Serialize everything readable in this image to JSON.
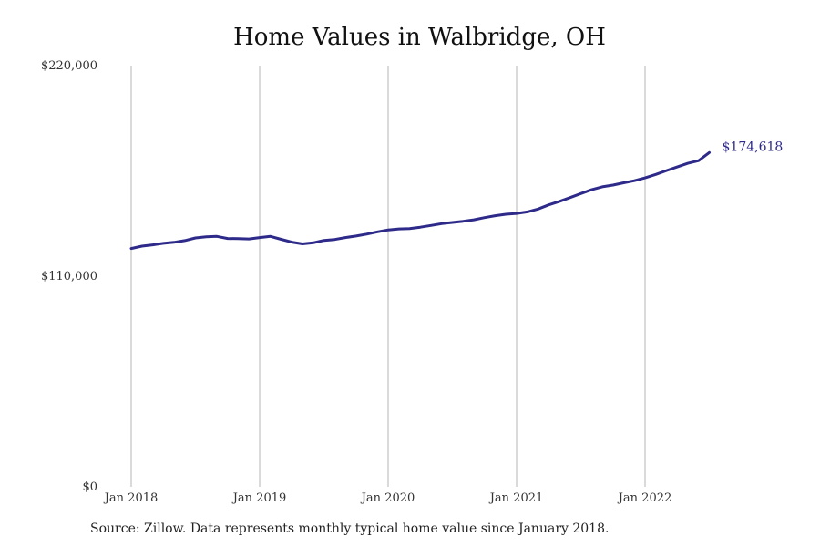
{
  "chart_data": {
    "type": "line",
    "title": "Home Values in Walbridge, OH",
    "ylim": [
      0,
      220000
    ],
    "y_ticks": [
      {
        "value": 0,
        "label": "$0"
      },
      {
        "value": 110000,
        "label": "$110,000"
      },
      {
        "value": 220000,
        "label": "$220,000"
      }
    ],
    "x_ticks": [
      {
        "value": "2018-01",
        "label": "Jan 2018"
      },
      {
        "value": "2019-01",
        "label": "Jan 2019"
      },
      {
        "value": "2020-01",
        "label": "Jan 2020"
      },
      {
        "value": "2021-01",
        "label": "Jan 2021"
      },
      {
        "value": "2022-01",
        "label": "Jan 2022"
      }
    ],
    "grid": "vertical",
    "line_color": "#2e2a8a",
    "end_label": "$174,618",
    "series": [
      {
        "x": [
          "2018-01",
          "2018-02",
          "2018-03",
          "2018-04",
          "2018-05",
          "2018-06",
          "2018-07",
          "2018-08",
          "2018-09",
          "2018-10",
          "2018-11",
          "2018-12",
          "2019-01",
          "2019-02",
          "2019-03",
          "2019-04",
          "2019-05",
          "2019-06",
          "2019-07",
          "2019-08",
          "2019-09",
          "2019-10",
          "2019-11",
          "2019-12",
          "2020-01",
          "2020-02",
          "2020-03",
          "2020-04",
          "2020-05",
          "2020-06",
          "2020-07",
          "2020-08",
          "2020-09",
          "2020-10",
          "2020-11",
          "2020-12",
          "2021-01",
          "2021-02",
          "2021-03",
          "2021-04",
          "2021-05",
          "2021-06",
          "2021-07",
          "2021-08",
          "2021-09",
          "2021-10",
          "2021-11",
          "2021-12",
          "2022-01",
          "2022-02",
          "2022-03",
          "2022-04",
          "2022-05",
          "2022-06",
          "2022-07"
        ],
        "values": [
          124500,
          125700,
          126400,
          127200,
          127700,
          128600,
          130000,
          130600,
          130800,
          129700,
          129600,
          129500,
          130200,
          130800,
          129300,
          127800,
          126900,
          127500,
          128700,
          129200,
          130200,
          131000,
          132000,
          133200,
          134200,
          134700,
          134900,
          135600,
          136500,
          137500,
          138100,
          138700,
          139500,
          140600,
          141600,
          142400,
          142800,
          143600,
          145100,
          147300,
          149100,
          151100,
          153200,
          155200,
          156700,
          157600,
          158800,
          159900,
          161400,
          163200,
          165200,
          167100,
          169000,
          170400,
          174618
        ]
      }
    ]
  },
  "footer": {
    "source": "Source: Zillow. Data represents monthly typical home value since January 2018."
  }
}
